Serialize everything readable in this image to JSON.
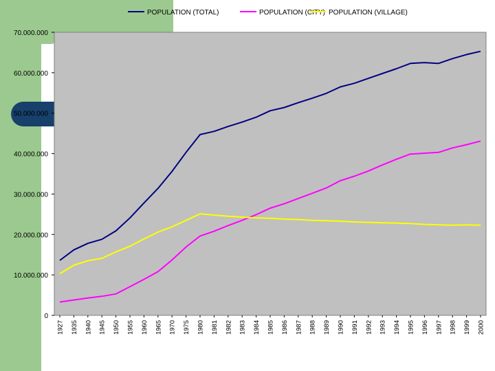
{
  "chart_data": {
    "type": "line",
    "title": "",
    "xlabel": "",
    "ylabel": "",
    "categories": [
      "1927",
      "1935",
      "1940",
      "1945",
      "1950",
      "1955",
      "1960",
      "1965",
      "1970",
      "1975",
      "1980",
      "1981",
      "1982",
      "1983",
      "1984",
      "1985",
      "1986",
      "1987",
      "1988",
      "1989",
      "1990",
      "1991",
      "1992",
      "1993",
      "1994",
      "1995",
      "1996",
      "1997",
      "1998",
      "1999",
      "2000"
    ],
    "ylim": [
      0,
      70000000
    ],
    "yticks": [
      {
        "value": 0,
        "label": "0"
      },
      {
        "value": 10000000,
        "label": "10.000.000"
      },
      {
        "value": 20000000,
        "label": "20.000.000"
      },
      {
        "value": 30000000,
        "label": "30.000.000"
      },
      {
        "value": 40000000,
        "label": "40.000.000"
      },
      {
        "value": 50000000,
        "label": "50.000.000"
      },
      {
        "value": 60000000,
        "label": "60.000.000"
      },
      {
        "value": 70000000,
        "label": "70.000.000"
      }
    ],
    "grid": false,
    "legend_position": "top",
    "plot_background": "#c0c0c0",
    "series": [
      {
        "name": "POPULATION (TOTAL)",
        "color": "#000080",
        "values": [
          13600000,
          16200000,
          17800000,
          18800000,
          20900000,
          24100000,
          27800000,
          31400000,
          35600000,
          40300000,
          44700000,
          45500000,
          46700000,
          47800000,
          49000000,
          50600000,
          51400000,
          52600000,
          53700000,
          54900000,
          56500000,
          57400000,
          58600000,
          59800000,
          61000000,
          62300000,
          62500000,
          62300000,
          63500000,
          64500000,
          65300000
        ]
      },
      {
        "name": "POPULATION (CITY)",
        "color": "#ff00ff",
        "values": [
          3300000,
          3800000,
          4300000,
          4700000,
          5300000,
          7100000,
          8900000,
          10800000,
          13700000,
          16900000,
          19600000,
          20800000,
          22200000,
          23500000,
          24900000,
          26500000,
          27600000,
          28900000,
          30200000,
          31500000,
          33300000,
          34400000,
          35700000,
          37200000,
          38600000,
          39900000,
          40100000,
          40300000,
          41400000,
          42200000,
          43100000
        ]
      },
      {
        "name": "POPULATION (VILLAGE)",
        "color": "#ffff00",
        "values": [
          10300000,
          12400000,
          13500000,
          14100000,
          15700000,
          17100000,
          18900000,
          20600000,
          21900000,
          23500000,
          25100000,
          24800000,
          24500000,
          24300000,
          24100000,
          24000000,
          23800000,
          23700000,
          23500000,
          23400000,
          23300000,
          23100000,
          23000000,
          22900000,
          22800000,
          22700000,
          22500000,
          22400000,
          22300000,
          22400000,
          22300000
        ]
      }
    ]
  }
}
